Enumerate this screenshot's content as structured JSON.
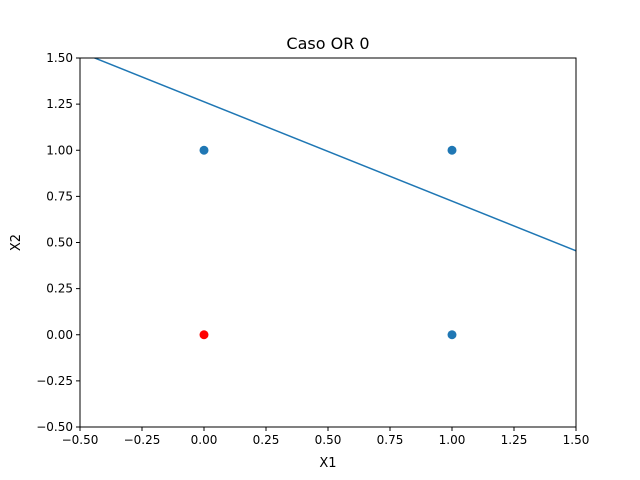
{
  "chart_data": {
    "type": "scatter",
    "title": "Caso OR 0",
    "xlabel": "X1",
    "ylabel": "X2",
    "xlim": [
      -0.5,
      1.5
    ],
    "ylim": [
      -0.5,
      1.5
    ],
    "grid": false,
    "xticks": [
      -0.5,
      -0.25,
      0.0,
      0.25,
      0.5,
      0.75,
      1.0,
      1.25,
      1.5
    ],
    "yticks": [
      -0.5,
      -0.25,
      0.0,
      0.25,
      0.5,
      0.75,
      1.0,
      1.25,
      1.5
    ],
    "xtick_labels": [
      "−0.50",
      "−0.25",
      "0.00",
      "0.25",
      "0.50",
      "0.75",
      "1.00",
      "1.25",
      "1.50"
    ],
    "ytick_labels": [
      "−0.50",
      "−0.25",
      "0.00",
      "0.25",
      "0.50",
      "0.75",
      "1.00",
      "1.25",
      "1.50"
    ],
    "points": [
      {
        "x": 0,
        "y": 0,
        "color": "#ff0000"
      },
      {
        "x": 0,
        "y": 1,
        "color": "#1f77b4"
      },
      {
        "x": 1,
        "y": 0,
        "color": "#1f77b4"
      },
      {
        "x": 1,
        "y": 1,
        "color": "#1f77b4"
      }
    ],
    "line": {
      "color": "#1f77b4",
      "x": [
        -0.5,
        1.5
      ],
      "y": [
        1.532,
        0.455
      ]
    }
  }
}
